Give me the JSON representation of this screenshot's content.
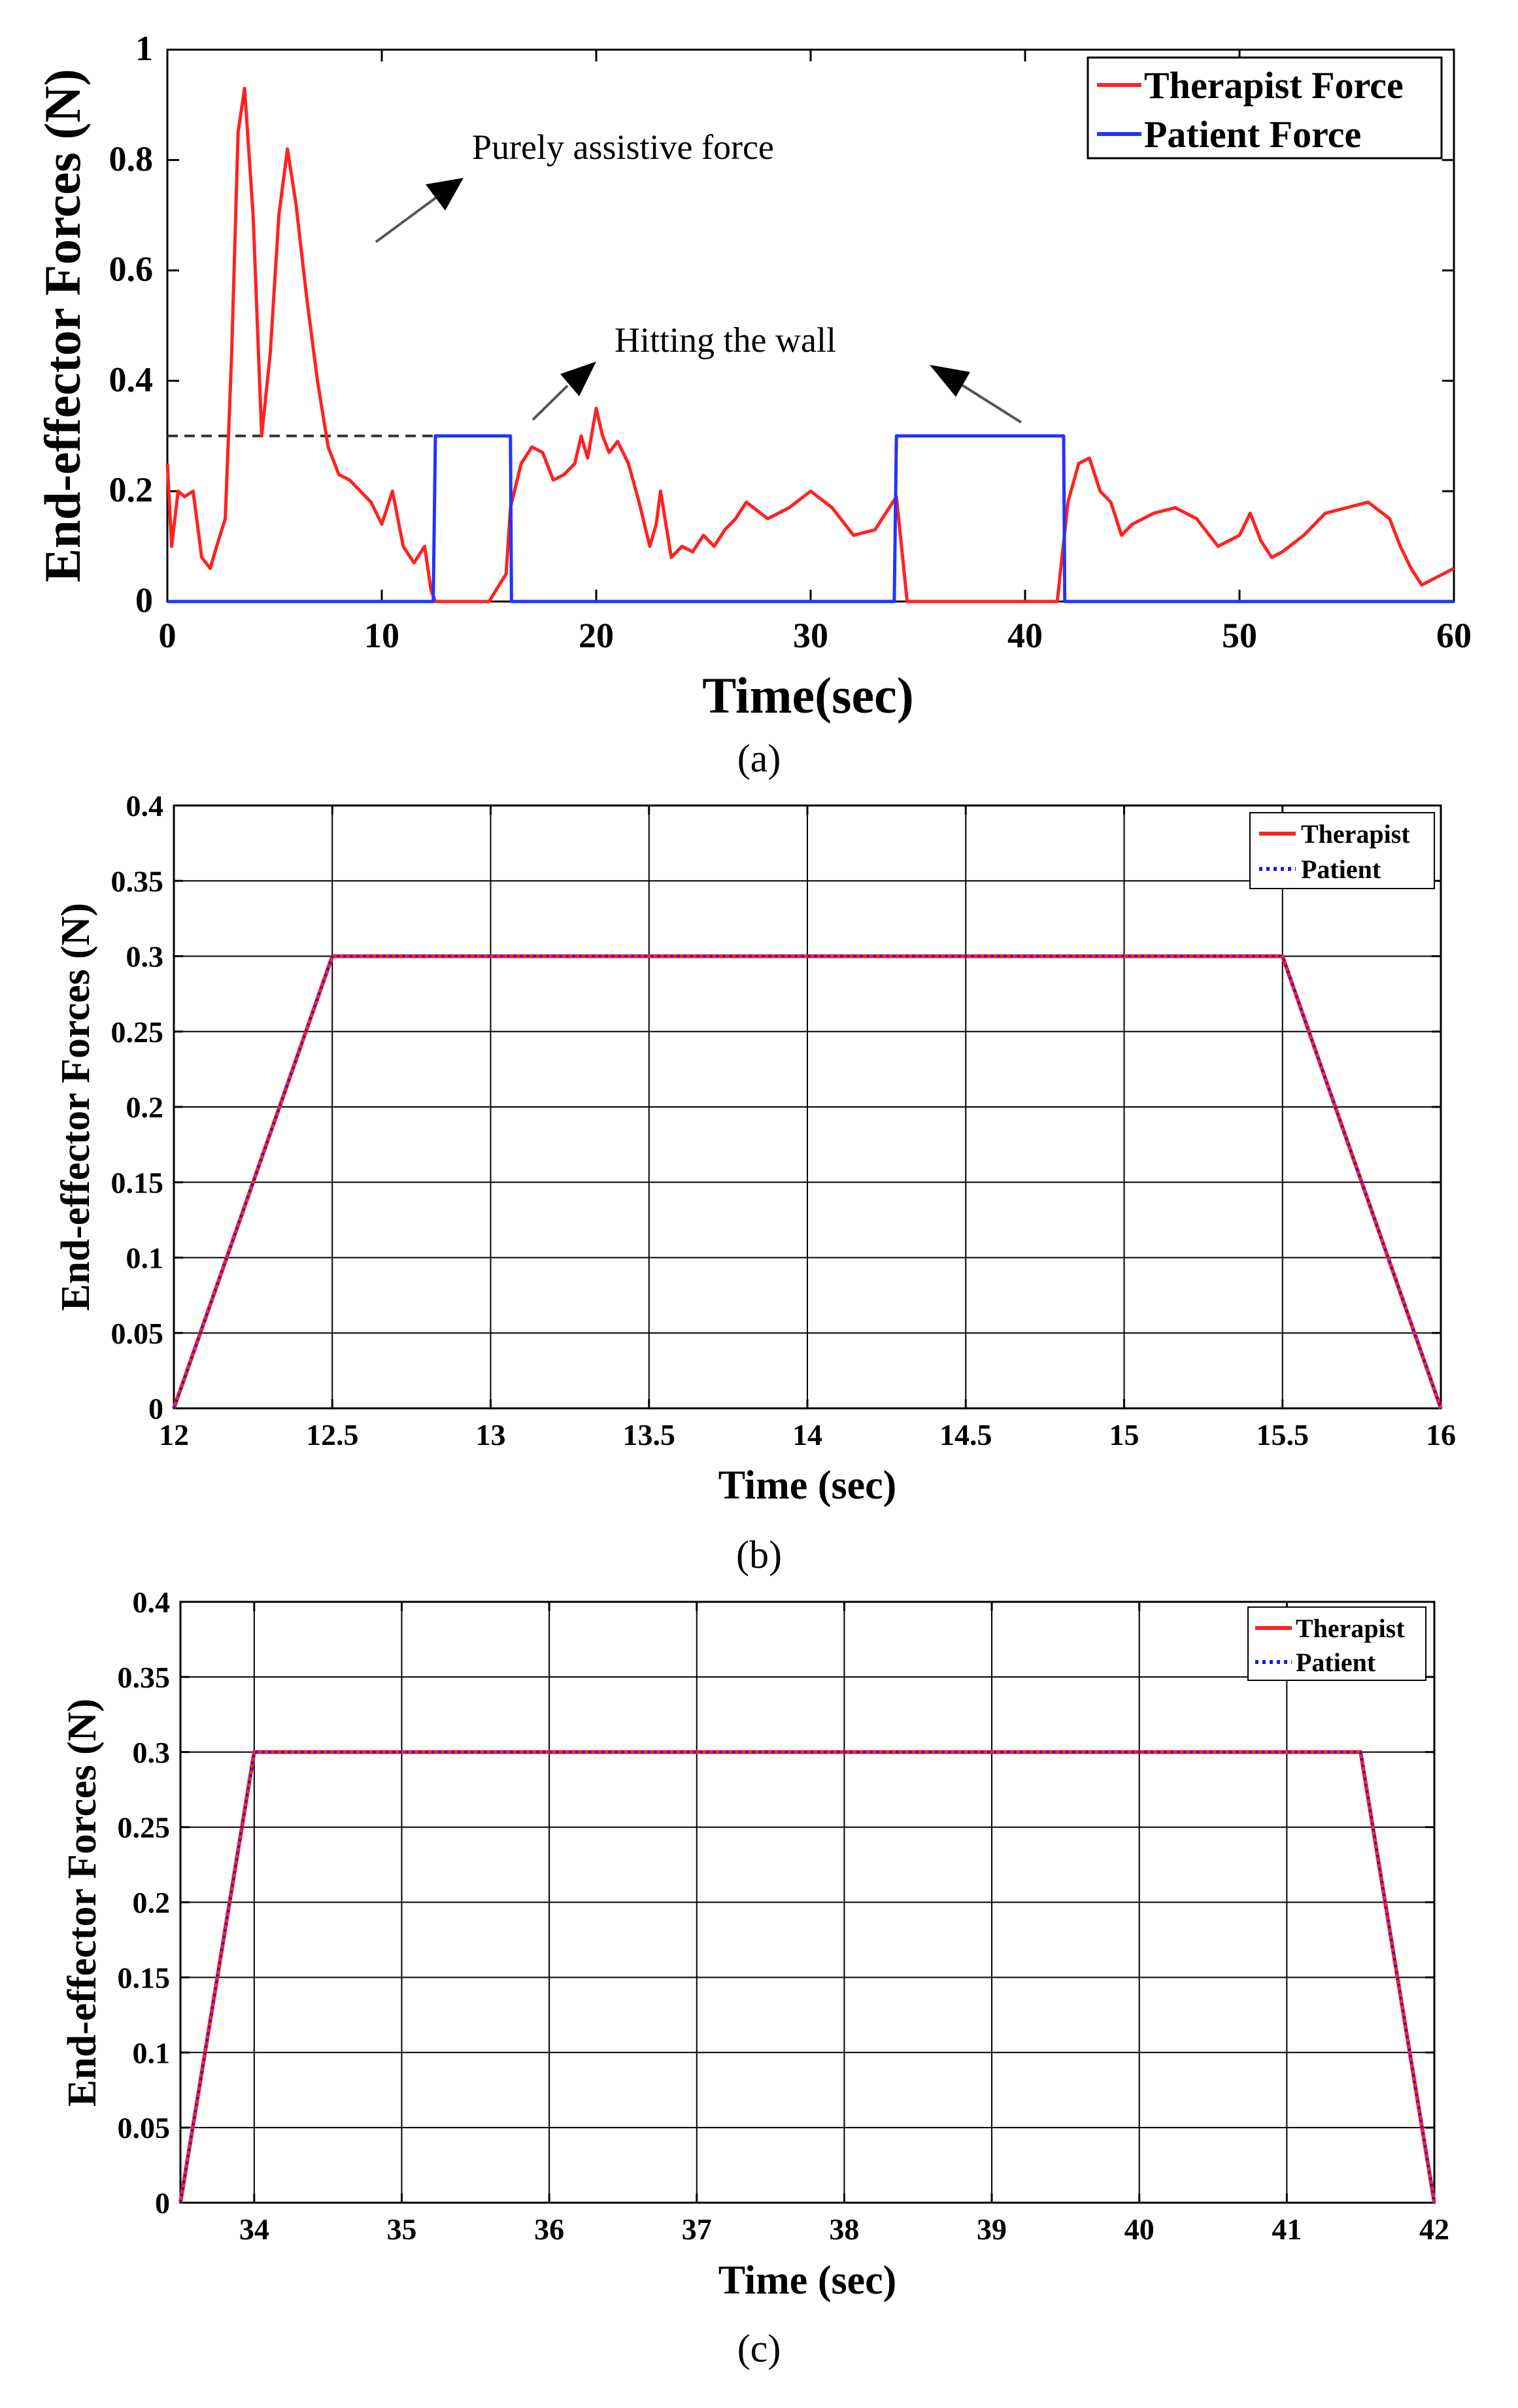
{
  "colors": {
    "therapist": "#ff2222",
    "patient": "#2233ff",
    "patient_dotted": "#1a1aee",
    "annotation": "#555555"
  },
  "chart_data": [
    {
      "id": "a",
      "type": "line",
      "caption": "(a)",
      "xlabel": "Time(sec)",
      "ylabel": "End-effector Forces (N)",
      "xlim": [
        0,
        60
      ],
      "ylim": [
        0,
        1
      ],
      "xticks": [
        0,
        10,
        20,
        30,
        40,
        50,
        60
      ],
      "yticks": [
        0,
        0.2,
        0.4,
        0.6,
        0.8,
        1
      ],
      "ytick_labels": [
        "0",
        "0.2",
        "0.4",
        "0.6",
        "0.8",
        "1"
      ],
      "legend": [
        "Therapist Force",
        "Patient Force"
      ],
      "legend_position": "top-right",
      "annotations": [
        "Purely assistive force",
        "Hitting the wall"
      ],
      "reference_line": {
        "y": 0.3,
        "x_range": [
          0,
          12.5
        ],
        "style": "dashed"
      },
      "series": [
        {
          "name": "Therapist Force",
          "x": [
            0,
            0.2,
            0.5,
            0.8,
            1.2,
            1.6,
            2,
            2.3,
            2.7,
            3,
            3.3,
            3.6,
            4,
            4.4,
            4.8,
            5.2,
            5.6,
            6,
            6.5,
            7,
            7.5,
            8,
            8.5,
            9,
            9.5,
            10,
            10.5,
            11,
            11.5,
            12,
            12.3,
            12.5,
            13,
            14,
            15,
            15.8,
            16,
            16.5,
            17,
            17.5,
            18,
            18.5,
            19,
            19.3,
            19.6,
            20,
            20.3,
            20.6,
            21,
            21.5,
            22,
            22.5,
            22.8,
            23,
            23.5,
            24,
            24.5,
            25,
            25.5,
            26,
            26.5,
            27,
            28,
            29,
            30,
            31,
            32,
            33,
            33.5,
            34,
            34.5,
            35,
            36,
            37,
            38,
            39,
            40,
            41,
            41.5,
            42,
            42.5,
            43,
            43.5,
            44,
            44.5,
            45,
            46,
            47,
            48,
            49,
            50,
            50.5,
            51,
            51.5,
            52,
            53,
            54,
            55,
            56,
            57,
            57.5,
            58,
            58.5,
            59,
            59.5,
            60
          ],
          "y": [
            0.25,
            0.1,
            0.2,
            0.19,
            0.2,
            0.08,
            0.06,
            0.1,
            0.15,
            0.45,
            0.85,
            0.93,
            0.7,
            0.3,
            0.45,
            0.7,
            0.82,
            0.72,
            0.55,
            0.4,
            0.28,
            0.23,
            0.22,
            0.2,
            0.18,
            0.14,
            0.2,
            0.1,
            0.07,
            0.1,
            0.02,
            0.0,
            0.0,
            0.0,
            0.0,
            0.05,
            0.17,
            0.25,
            0.28,
            0.27,
            0.22,
            0.23,
            0.25,
            0.3,
            0.26,
            0.35,
            0.3,
            0.27,
            0.29,
            0.25,
            0.18,
            0.1,
            0.14,
            0.2,
            0.08,
            0.1,
            0.09,
            0.12,
            0.1,
            0.13,
            0.15,
            0.18,
            0.15,
            0.17,
            0.2,
            0.17,
            0.12,
            0.13,
            0.16,
            0.19,
            0.0,
            0.0,
            0.0,
            0.0,
            0.0,
            0.0,
            0.0,
            0.0,
            0.0,
            0.18,
            0.25,
            0.26,
            0.2,
            0.18,
            0.12,
            0.14,
            0.16,
            0.17,
            0.15,
            0.1,
            0.12,
            0.16,
            0.11,
            0.08,
            0.09,
            0.12,
            0.16,
            0.17,
            0.18,
            0.15,
            0.1,
            0.06,
            0.03,
            0.04,
            0.05,
            0.06
          ]
        },
        {
          "name": "Patient Force",
          "x": [
            0,
            12.4,
            12.5,
            16.0,
            16.05,
            33.9,
            34.0,
            41.8,
            41.85,
            60
          ],
          "y": [
            0,
            0,
            0.3,
            0.3,
            0,
            0,
            0.3,
            0.3,
            0,
            0
          ]
        }
      ]
    },
    {
      "id": "b",
      "type": "line",
      "caption": "(b)",
      "xlabel": "Time (sec)",
      "ylabel": "End-effector Forces (N)",
      "xlim": [
        12,
        16
      ],
      "ylim": [
        0,
        0.4
      ],
      "xticks": [
        12,
        12.5,
        13,
        13.5,
        14,
        14.5,
        15,
        15.5,
        16
      ],
      "yticks": [
        0,
        0.05,
        0.1,
        0.15,
        0.2,
        0.25,
        0.3,
        0.35,
        0.4
      ],
      "ytick_labels": [
        "0",
        "0.05",
        "0.1",
        "0.15",
        "0.2",
        "0.25",
        "0.3",
        "0.35",
        "0.4"
      ],
      "legend": [
        "Therapist",
        "Patient"
      ],
      "legend_position": "top-right",
      "series": [
        {
          "name": "Therapist",
          "x": [
            12,
            12.5,
            15.5,
            16
          ],
          "y": [
            0,
            0.3,
            0.3,
            0
          ]
        },
        {
          "name": "Patient",
          "x": [
            12,
            12.5,
            15.5,
            16
          ],
          "y": [
            0,
            0.3,
            0.3,
            0
          ]
        }
      ]
    },
    {
      "id": "c",
      "type": "line",
      "caption": "(c)",
      "xlabel": "Time (sec)",
      "ylabel": "End-effector Forces (N)",
      "xlim": [
        33.5,
        42
      ],
      "ylim": [
        0,
        0.4
      ],
      "xticks": [
        34,
        35,
        36,
        37,
        38,
        39,
        40,
        41,
        42
      ],
      "yticks": [
        0,
        0.05,
        0.1,
        0.15,
        0.2,
        0.25,
        0.3,
        0.35,
        0.4
      ],
      "ytick_labels": [
        "0",
        "0.05",
        "0.1",
        "0.15",
        "0.2",
        "0.25",
        "0.3",
        "0.35",
        "0.4"
      ],
      "legend": [
        "Therapist",
        "Patient"
      ],
      "legend_position": "top-right",
      "series": [
        {
          "name": "Therapist",
          "x": [
            33.5,
            34,
            41.5,
            42
          ],
          "y": [
            0,
            0.3,
            0.3,
            0
          ]
        },
        {
          "name": "Patient",
          "x": [
            33.5,
            34,
            41.5,
            42
          ],
          "y": [
            0,
            0.3,
            0.3,
            0
          ]
        }
      ]
    }
  ]
}
